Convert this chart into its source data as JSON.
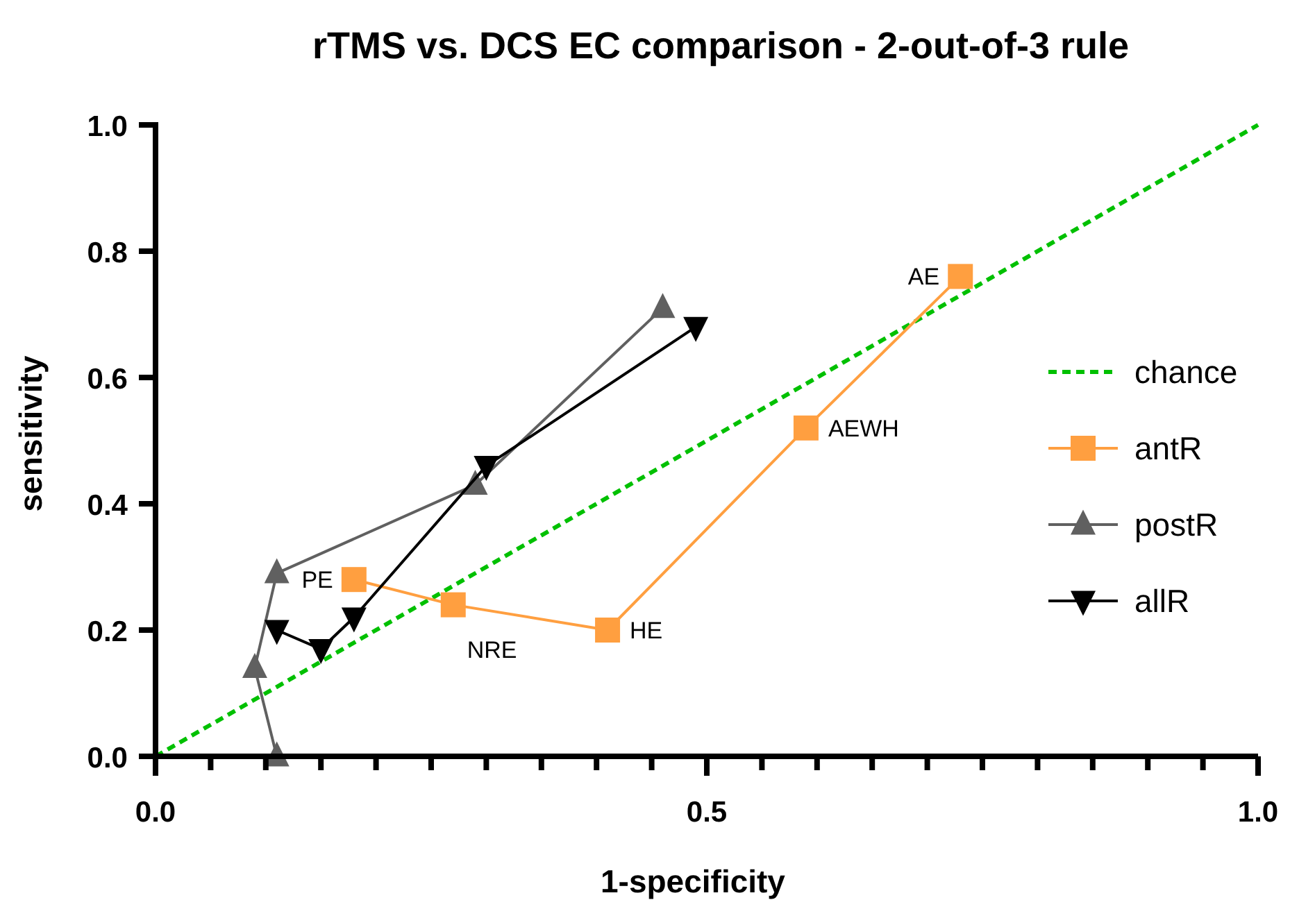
{
  "chart_data": {
    "type": "line",
    "title": "rTMS vs. DCS EC comparison - 2-out-of-3 rule",
    "xlabel": "1-specificity",
    "ylabel": "sensitivity",
    "xlim": [
      0,
      1
    ],
    "ylim": [
      0,
      1
    ],
    "xticks": [
      {
        "value": 0,
        "label": "0.0"
      },
      {
        "value": 0.05,
        "label": null
      },
      {
        "value": 0.1,
        "label": null
      },
      {
        "value": 0.15,
        "label": null
      },
      {
        "value": 0.2,
        "label": null
      },
      {
        "value": 0.25,
        "label": null
      },
      {
        "value": 0.3,
        "label": null
      },
      {
        "value": 0.35,
        "label": null
      },
      {
        "value": 0.4,
        "label": null
      },
      {
        "value": 0.45,
        "label": null
      },
      {
        "value": 0.5,
        "label": "0.5"
      },
      {
        "value": 0.55,
        "label": null
      },
      {
        "value": 0.6,
        "label": null
      },
      {
        "value": 0.65,
        "label": null
      },
      {
        "value": 0.7,
        "label": null
      },
      {
        "value": 0.75,
        "label": null
      },
      {
        "value": 0.8,
        "label": null
      },
      {
        "value": 0.85,
        "label": null
      },
      {
        "value": 0.9,
        "label": null
      },
      {
        "value": 0.95,
        "label": null
      },
      {
        "value": 1,
        "label": "1.0"
      }
    ],
    "yticks": [
      {
        "value": 0,
        "label": "0.0"
      },
      {
        "value": 0.2,
        "label": "0.2"
      },
      {
        "value": 0.4,
        "label": "0.4"
      },
      {
        "value": 0.6,
        "label": "0.6"
      },
      {
        "value": 0.8,
        "label": "0.8"
      },
      {
        "value": 1,
        "label": "1.0"
      }
    ],
    "legend": "right",
    "grid": false,
    "series": [
      {
        "name": "chance",
        "color": "#00c000",
        "x": [
          0,
          1
        ],
        "values": [
          0,
          1
        ],
        "marker": "none",
        "line_style": "dashed"
      },
      {
        "name": "antR",
        "color": "#ff9f40",
        "x": [
          0.18,
          0.27,
          0.41,
          0.59,
          0.73
        ],
        "values": [
          0.28,
          0.24,
          0.2,
          0.52,
          0.76
        ],
        "marker": "square",
        "line_style": "solid"
      },
      {
        "name": "postR",
        "color": "#606060",
        "x": [
          0.11,
          0.09,
          0.11,
          0.29,
          0.46
        ],
        "values": [
          0,
          0.14,
          0.29,
          0.43,
          0.71
        ],
        "marker": "triangle",
        "line_style": "solid"
      },
      {
        "name": "allR",
        "color": "#000000",
        "x": [
          0.11,
          0.15,
          0.18,
          0.3,
          0.49
        ],
        "values": [
          0.2,
          0.17,
          0.22,
          0.46,
          0.68
        ],
        "marker": "triangle-down",
        "line_style": "solid"
      }
    ],
    "annotations": [
      {
        "text": "PE",
        "x": 0.18,
        "y": 0.28
      },
      {
        "text": "NRE",
        "x": 0.27,
        "y": 0.24
      },
      {
        "text": "HE",
        "x": 0.41,
        "y": 0.2
      },
      {
        "text": "AEWH",
        "x": 0.59,
        "y": 0.52
      },
      {
        "text": "AE",
        "x": 0.73,
        "y": 0.76
      }
    ]
  }
}
